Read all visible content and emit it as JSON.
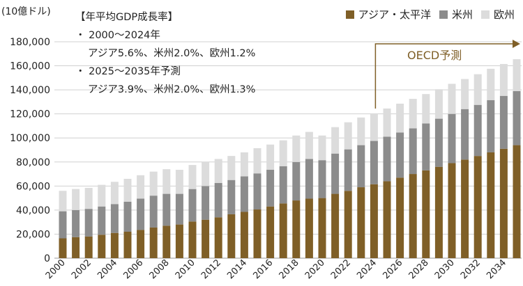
{
  "chart_data": {
    "type": "bar",
    "stacked": true,
    "unit_label": "(10億ドル)",
    "categories": [
      2000,
      2001,
      2002,
      2003,
      2004,
      2005,
      2006,
      2007,
      2008,
      2009,
      2010,
      2011,
      2012,
      2013,
      2014,
      2015,
      2016,
      2017,
      2018,
      2019,
      2020,
      2021,
      2022,
      2023,
      2024,
      2025,
      2026,
      2027,
      2028,
      2029,
      2030,
      2031,
      2032,
      2033,
      2034,
      2035
    ],
    "x_tick_labels": [
      "2000",
      "2002",
      "2004",
      "2006",
      "2008",
      "2010",
      "2012",
      "2014",
      "2016",
      "2018",
      "2020",
      "2022",
      "2024",
      "2026",
      "2028",
      "2030",
      "2032",
      "2034"
    ],
    "y_tick_labels": [
      "0",
      "20,000",
      "40,000",
      "60,000",
      "80,000",
      "100,000",
      "120,000",
      "140,000",
      "160,000",
      "180,000"
    ],
    "ylim": [
      0,
      180000
    ],
    "grid": true,
    "legend_position": "top-right",
    "series": [
      {
        "name": "アジア・太平洋",
        "color": "#7f5f27",
        "values": [
          16500,
          17500,
          18000,
          19500,
          21000,
          22000,
          23500,
          25500,
          27000,
          28000,
          30500,
          32000,
          34000,
          36500,
          38500,
          40500,
          43000,
          45500,
          48000,
          49500,
          50000,
          53500,
          56000,
          59000,
          61500,
          64000,
          67000,
          70000,
          73000,
          76000,
          79000,
          82000,
          85000,
          88000,
          91000,
          94000
        ]
      },
      {
        "name": "米州",
        "color": "#8c8c8c",
        "values": [
          22500,
          22500,
          23000,
          23500,
          24000,
          25000,
          26000,
          26500,
          26500,
          25500,
          27000,
          28000,
          28500,
          28500,
          29500,
          30000,
          30500,
          31000,
          32000,
          33000,
          31500,
          33500,
          34500,
          35000,
          36000,
          37000,
          37500,
          38000,
          39000,
          40000,
          41000,
          42000,
          42500,
          43500,
          44000,
          45000
        ]
      },
      {
        "name": "欧州",
        "color": "#dcdcdc",
        "values": [
          17000,
          17500,
          17500,
          18000,
          18500,
          19000,
          19500,
          20000,
          20500,
          20000,
          20000,
          20000,
          20000,
          20000,
          20000,
          21000,
          21000,
          21500,
          22000,
          22500,
          20500,
          22000,
          22500,
          23000,
          23000,
          23500,
          24000,
          24500,
          24500,
          24500,
          25000,
          25000,
          25500,
          26000,
          26500,
          26500
        ]
      }
    ],
    "annotations": {
      "title": "【年平均GDP成長率】",
      "line1": "・ 2000〜2024年",
      "line2": "アジア5.6%、米州2.0%、欧州1.2%",
      "line3": "・ 2025〜2035年予測",
      "line4": "アジア3.9%、米州2.0%、欧州1.3%",
      "forecast_label": "OECD予測"
    }
  }
}
